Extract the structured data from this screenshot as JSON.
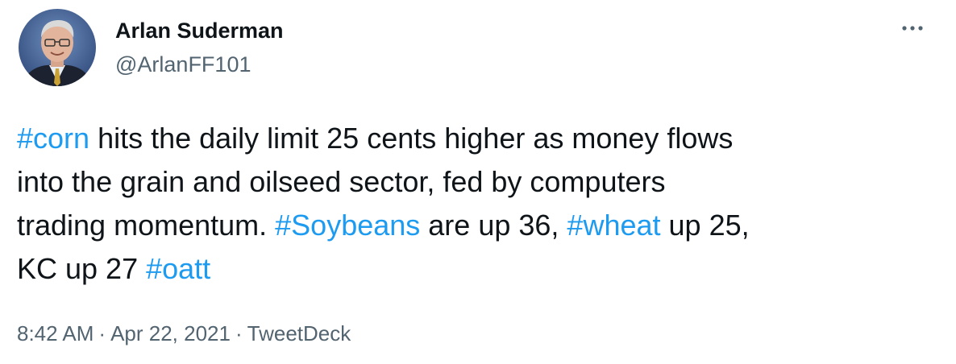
{
  "tweet": {
    "author": {
      "name": "Arlan Suderman",
      "handle": "@ArlanFF101",
      "avatar_icon": "profile-photo-icon"
    },
    "more_icon": "more-dots-icon",
    "text_lines": [
      {
        "parts": [
          {
            "type": "hashtag",
            "text": "#corn"
          },
          {
            "type": "text",
            "text": " hits the daily limit 25 cents higher as money flows"
          }
        ]
      },
      {
        "parts": [
          {
            "type": "text",
            "text": "into the grain and oilseed sector, fed by computers"
          }
        ]
      },
      {
        "parts": [
          {
            "type": "text",
            "text": "trading momentum. "
          },
          {
            "type": "hashtag",
            "text": "#Soybeans"
          },
          {
            "type": "text",
            "text": " are up 36, "
          },
          {
            "type": "hashtag",
            "text": "#wheat"
          },
          {
            "type": "text",
            "text": " up 25,"
          }
        ]
      },
      {
        "parts": [
          {
            "type": "text",
            "text": "KC up 27 "
          },
          {
            "type": "hashtag",
            "text": "#oatt"
          }
        ]
      }
    ],
    "meta": {
      "time": "8:42 AM",
      "separator": "·",
      "date": "Apr 22, 2021",
      "source": "TweetDeck"
    }
  },
  "colors": {
    "text": "#0f1419",
    "secondary": "#536471",
    "hashtag": "#1d9bf0",
    "background": "#ffffff"
  }
}
